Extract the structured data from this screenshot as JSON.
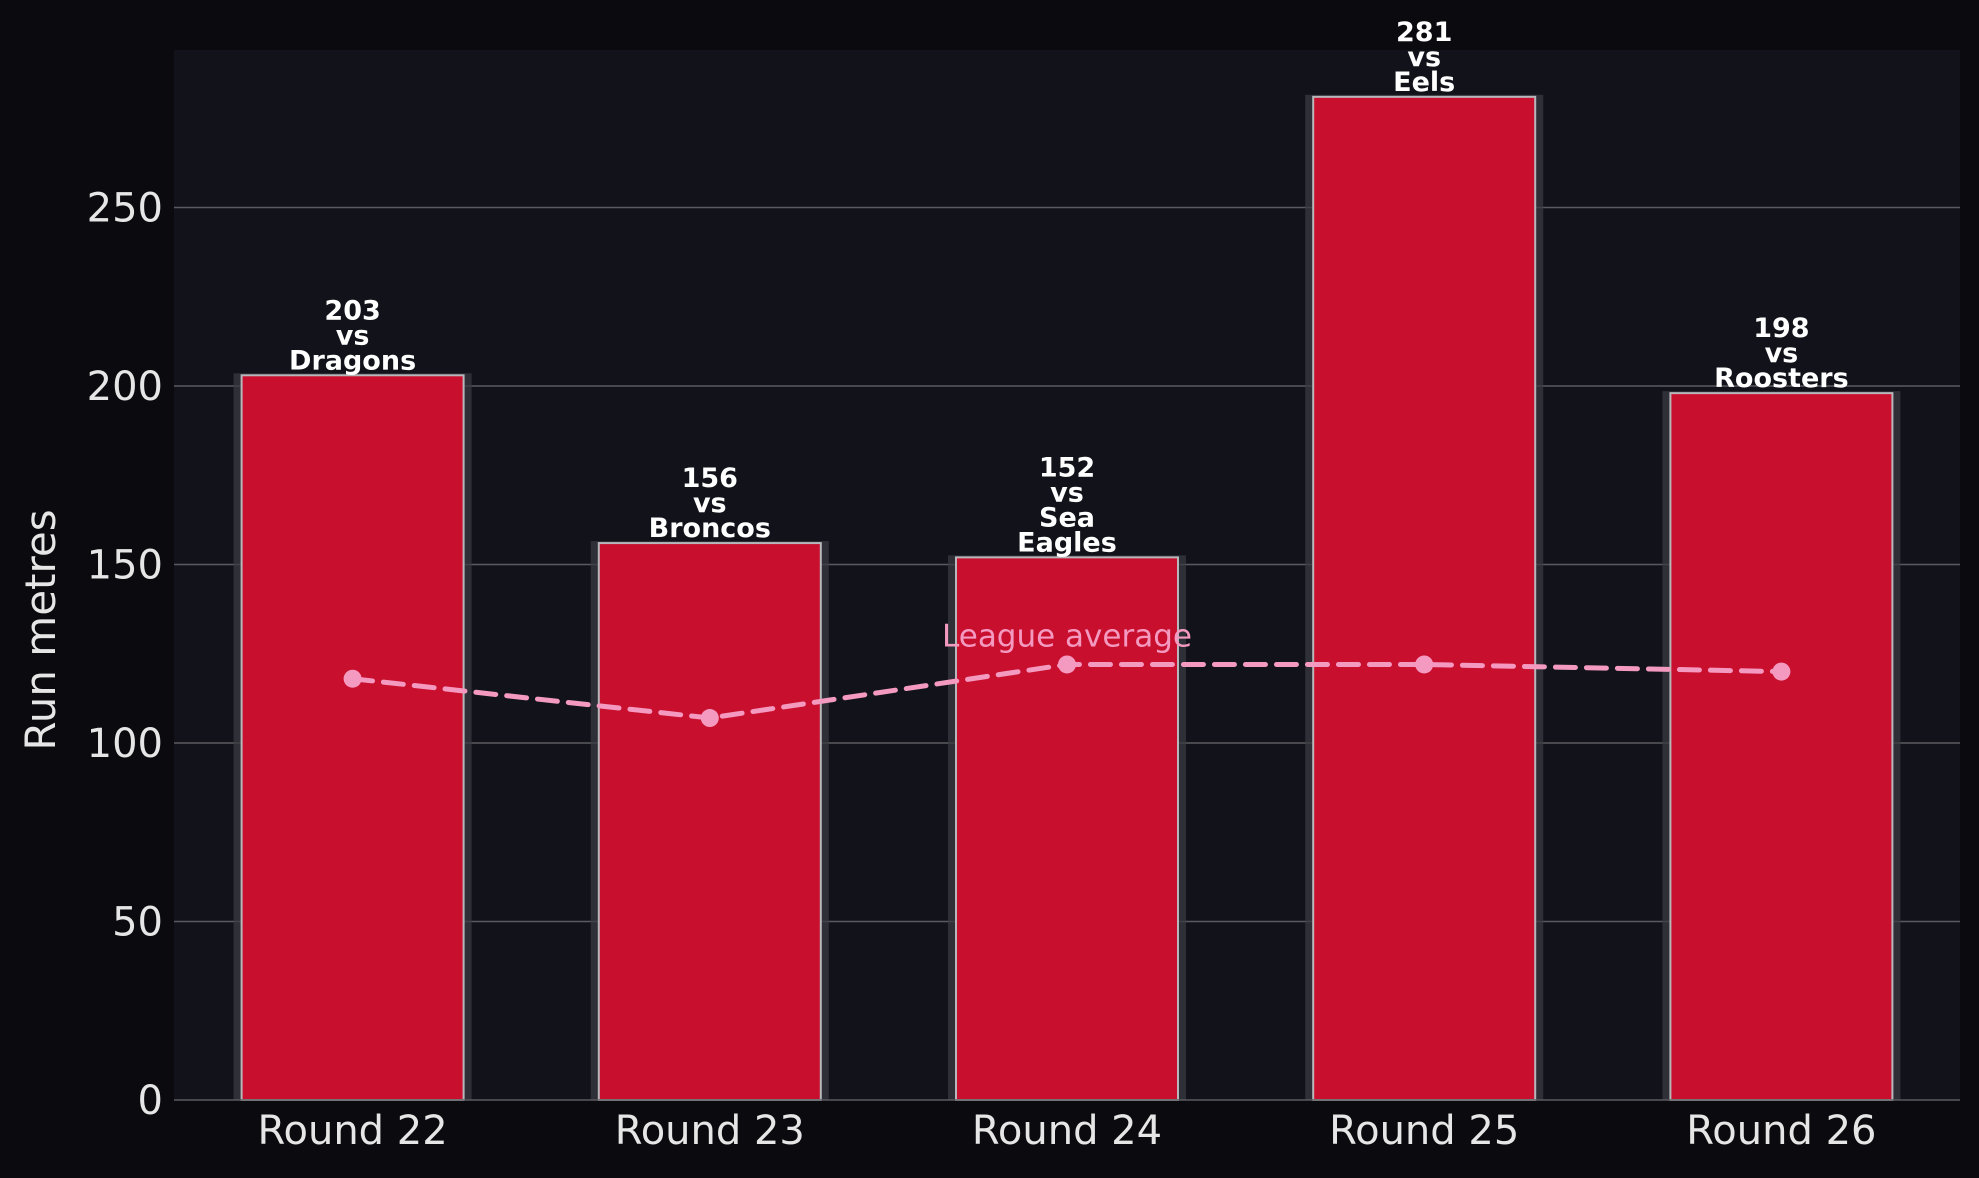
{
  "colors": {
    "page_bg": "#0b0b0f",
    "plot_bg": "#12131a",
    "bar_fill": "#c8102e",
    "bar_edge": "#b8b8bc",
    "bar_shadow": "#3a3b42",
    "grid": "#5a5b60",
    "tick_text": "#e6e6e6",
    "label_text": "#ffffff",
    "average_line": "#f49ac1"
  },
  "chart_data": {
    "type": "bar",
    "categories": [
      "Round 22",
      "Round 23",
      "Round 24",
      "Round 25",
      "Round 26"
    ],
    "series": [
      {
        "values": [
          203,
          156,
          152,
          281,
          198
        ]
      }
    ],
    "bar_labels": [
      [
        "203",
        "vs",
        "Dragons"
      ],
      [
        "156",
        "vs",
        "Broncos"
      ],
      [
        "152",
        "vs",
        "Sea",
        "Eagles"
      ],
      [
        "281",
        "vs",
        "Eels"
      ],
      [
        "198",
        "vs",
        "Roosters"
      ]
    ],
    "average": {
      "name": "League average",
      "values": [
        118,
        107,
        122,
        122,
        120
      ],
      "style": "dashed line with markers"
    },
    "ylabel": "Run metres",
    "xlabel": "",
    "ylim": [
      0,
      295
    ],
    "yticks": [
      0,
      50,
      100,
      150,
      200,
      250
    ],
    "grid": "horizontal"
  }
}
